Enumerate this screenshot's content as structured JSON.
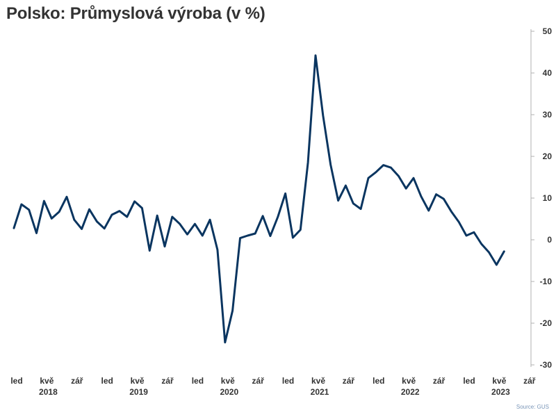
{
  "chart_data": {
    "type": "line",
    "title": "Polsko: Průmyslová výroba (v %)",
    "source": "Source: GUS",
    "y_ticks": [
      50,
      40,
      30,
      20,
      10,
      0,
      -10,
      -20,
      -30
    ],
    "ylim": [
      -30,
      50
    ],
    "y_axis_position": "right",
    "grid": false,
    "x_month_labels": [
      "led",
      "kvě",
      "zář",
      "led",
      "kvě",
      "zář",
      "led",
      "kvě",
      "zář",
      "led",
      "kvě",
      "zář",
      "led",
      "kvě",
      "zář",
      "led",
      "kvě",
      "zář"
    ],
    "x_year_labels": [
      "2018",
      "2019",
      "2020",
      "2021",
      "2022",
      "2023"
    ],
    "line_color": "#0a3560",
    "series": [
      {
        "x": [
          "2018-01",
          "2018-02",
          "2018-03",
          "2018-04",
          "2018-05",
          "2018-06",
          "2018-07",
          "2018-08",
          "2018-09",
          "2018-10",
          "2018-11",
          "2018-12",
          "2019-01",
          "2019-02",
          "2019-03",
          "2019-04",
          "2019-05",
          "2019-06",
          "2019-07",
          "2019-08",
          "2019-09",
          "2019-10",
          "2019-11",
          "2019-12",
          "2020-01",
          "2020-02",
          "2020-03",
          "2020-04",
          "2020-05",
          "2020-06",
          "2020-07",
          "2020-08",
          "2020-09",
          "2020-10",
          "2020-11",
          "2020-12",
          "2021-01",
          "2021-02",
          "2021-03",
          "2021-04",
          "2021-05",
          "2021-06",
          "2021-07",
          "2021-08",
          "2021-09",
          "2021-10",
          "2021-11",
          "2021-12",
          "2022-01",
          "2022-02",
          "2022-03",
          "2022-04",
          "2022-05",
          "2022-06",
          "2022-07",
          "2022-08",
          "2022-09",
          "2022-10",
          "2022-11",
          "2022-12",
          "2023-01",
          "2023-02",
          "2023-03",
          "2023-04",
          "2023-05",
          "2023-06"
        ],
        "values": [
          2.8,
          8.5,
          7.2,
          1.6,
          9.3,
          5.1,
          6.7,
          10.3,
          4.8,
          2.6,
          7.3,
          4.4,
          2.7,
          6.0,
          6.9,
          5.5,
          9.2,
          7.6,
          -2.6,
          5.8,
          -1.6,
          5.5,
          3.8,
          1.3,
          3.8,
          1.0,
          4.8,
          -2.4,
          -24.6,
          -17.0,
          0.4,
          1.0,
          1.5,
          5.7,
          0.9,
          5.5,
          11.1,
          0.5,
          2.4,
          18.5,
          44.2,
          29.8,
          18.0,
          9.4,
          13.0,
          8.7,
          7.4,
          14.8,
          16.2,
          17.9,
          17.3,
          15.3,
          12.3,
          14.8,
          10.4,
          7.0,
          10.9,
          9.8,
          6.8,
          4.3,
          1.0,
          1.8,
          -1.0,
          -3.0,
          -6.0,
          -2.8
        ]
      }
    ]
  }
}
